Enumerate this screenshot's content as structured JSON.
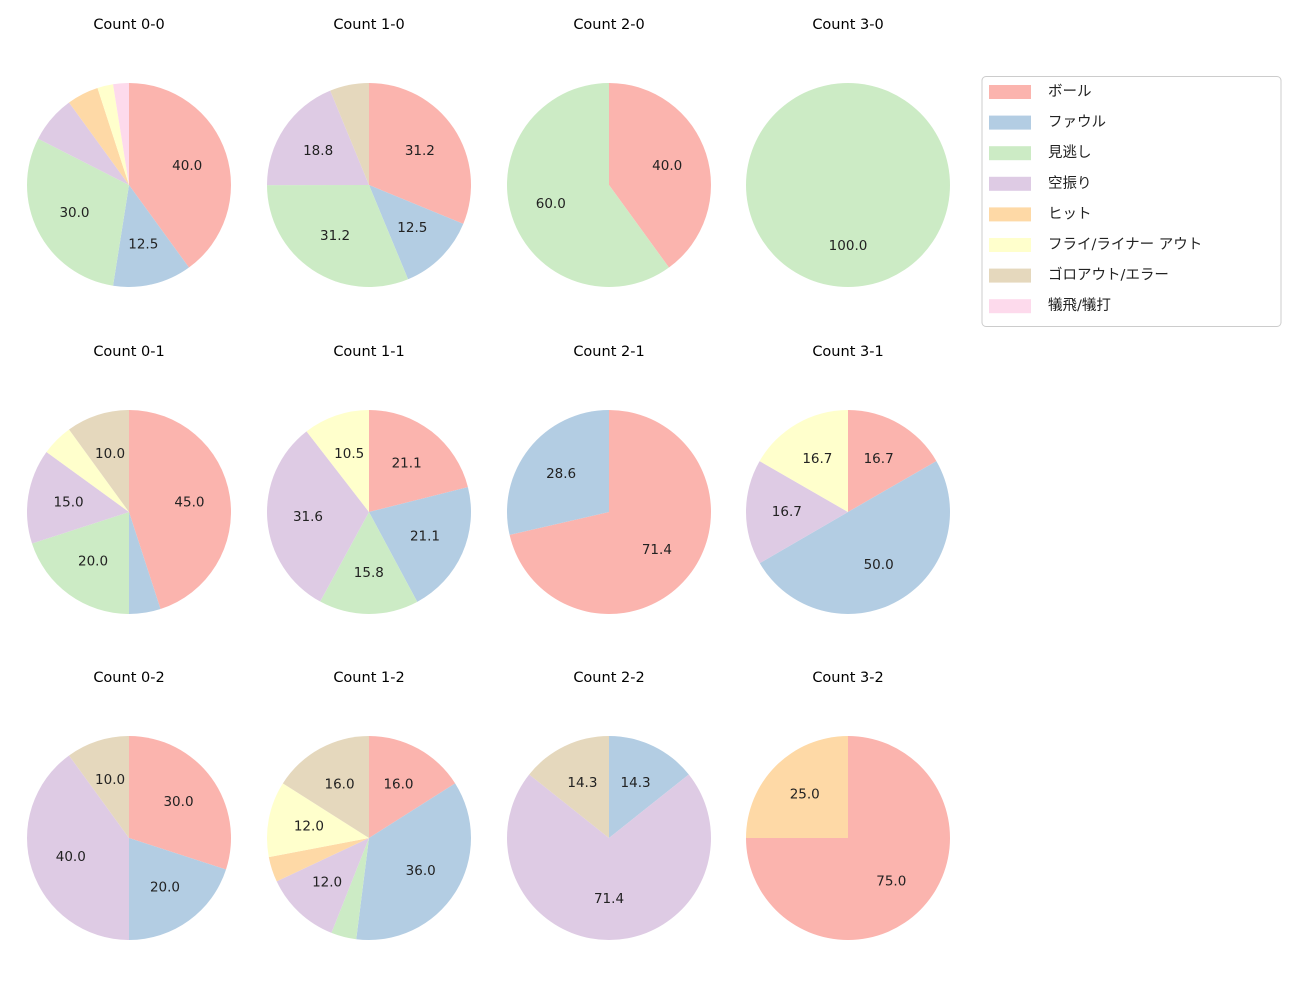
{
  "chart_data": {
    "type": "pie",
    "legend": {
      "placement": "top-right",
      "entries": [
        "ボール",
        "ファウル",
        "見逃し",
        "空振り",
        "ヒット",
        "フライ/ライナー アウト",
        "ゴロアウト/エラー",
        "犠飛/犠打"
      ]
    },
    "colors": [
      "#fbb4ae",
      "#b3cde3",
      "#ccebc5",
      "#decbe4",
      "#fed9a6",
      "#ffffcc",
      "#e5d8bd",
      "#fddaec"
    ],
    "start_angle": 90,
    "direction": "clockwise",
    "pies": [
      {
        "title": "Count 0-0",
        "values": [
          40,
          12.5,
          30,
          7.5,
          5,
          2.5,
          0,
          2.5
        ],
        "labels": [
          "40.0",
          "12.5",
          "30.0",
          "",
          "",
          "",
          "",
          ""
        ]
      },
      {
        "title": "Count 1-0",
        "values": [
          31.2,
          12.5,
          31.2,
          18.8,
          0,
          0,
          6.2,
          0
        ],
        "labels": [
          "31.2",
          "12.5",
          "31.2",
          "18.8",
          "",
          "",
          "",
          ""
        ]
      },
      {
        "title": "Count 2-0",
        "values": [
          40,
          0,
          60,
          0,
          0,
          0,
          0,
          0
        ],
        "labels": [
          "40.0",
          "",
          "60.0",
          "",
          "",
          "",
          "",
          ""
        ]
      },
      {
        "title": "Count 3-0",
        "values": [
          0,
          0,
          100,
          0,
          0,
          0,
          0,
          0
        ],
        "labels": [
          "",
          "",
          "100.0",
          "",
          "",
          "",
          "",
          ""
        ]
      },
      {
        "title": "Count 0-1",
        "values": [
          45,
          5,
          20,
          15,
          0,
          5,
          10,
          0
        ],
        "labels": [
          "45.0",
          "",
          "20.0",
          "15.0",
          "",
          "",
          "10.0",
          ""
        ]
      },
      {
        "title": "Count 1-1",
        "values": [
          21.1,
          21.1,
          15.8,
          31.6,
          0,
          10.5,
          0,
          0
        ],
        "labels": [
          "21.1",
          "21.1",
          "15.8",
          "31.6",
          "",
          "10.5",
          "",
          ""
        ]
      },
      {
        "title": "Count 2-1",
        "values": [
          71.4,
          28.6,
          0,
          0,
          0,
          0,
          0,
          0
        ],
        "labels": [
          "71.4",
          "28.6",
          "",
          "",
          "",
          "",
          "",
          ""
        ]
      },
      {
        "title": "Count 3-1",
        "values": [
          16.7,
          50,
          0,
          16.7,
          0,
          16.7,
          0,
          0
        ],
        "labels": [
          "16.7",
          "50.0",
          "",
          "16.7",
          "",
          "16.7",
          "",
          ""
        ]
      },
      {
        "title": "Count 0-2",
        "values": [
          30,
          20,
          0,
          40,
          0,
          0,
          10,
          0
        ],
        "labels": [
          "30.0",
          "20.0",
          "",
          "40.0",
          "",
          "",
          "10.0",
          ""
        ]
      },
      {
        "title": "Count 1-2",
        "values": [
          16,
          36,
          4,
          12,
          4,
          12,
          16,
          0
        ],
        "labels": [
          "16.0",
          "36.0",
          "",
          "12.0",
          "",
          "12.0",
          "16.0",
          ""
        ]
      },
      {
        "title": "Count 2-2",
        "values": [
          0,
          14.3,
          0,
          71.4,
          0,
          0,
          14.3,
          0
        ],
        "labels": [
          "",
          "14.3",
          "",
          "71.4",
          "",
          "",
          "14.3",
          ""
        ]
      },
      {
        "title": "Count 3-2",
        "values": [
          75,
          0,
          0,
          0,
          25,
          0,
          0,
          0
        ],
        "labels": [
          "75.0",
          "",
          "",
          "",
          "25.0",
          "",
          "",
          ""
        ]
      }
    ]
  }
}
